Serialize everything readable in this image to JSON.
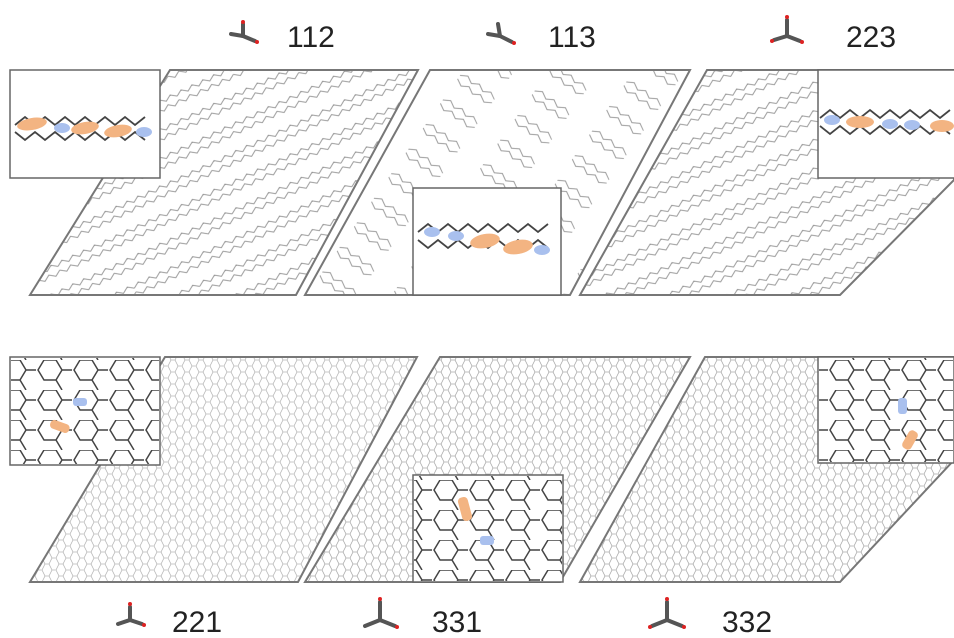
{
  "panels": [
    {
      "label": "112"
    },
    {
      "label": "113"
    },
    {
      "label": "223"
    },
    {
      "label": "221"
    },
    {
      "label": "331"
    },
    {
      "label": "332"
    }
  ]
}
